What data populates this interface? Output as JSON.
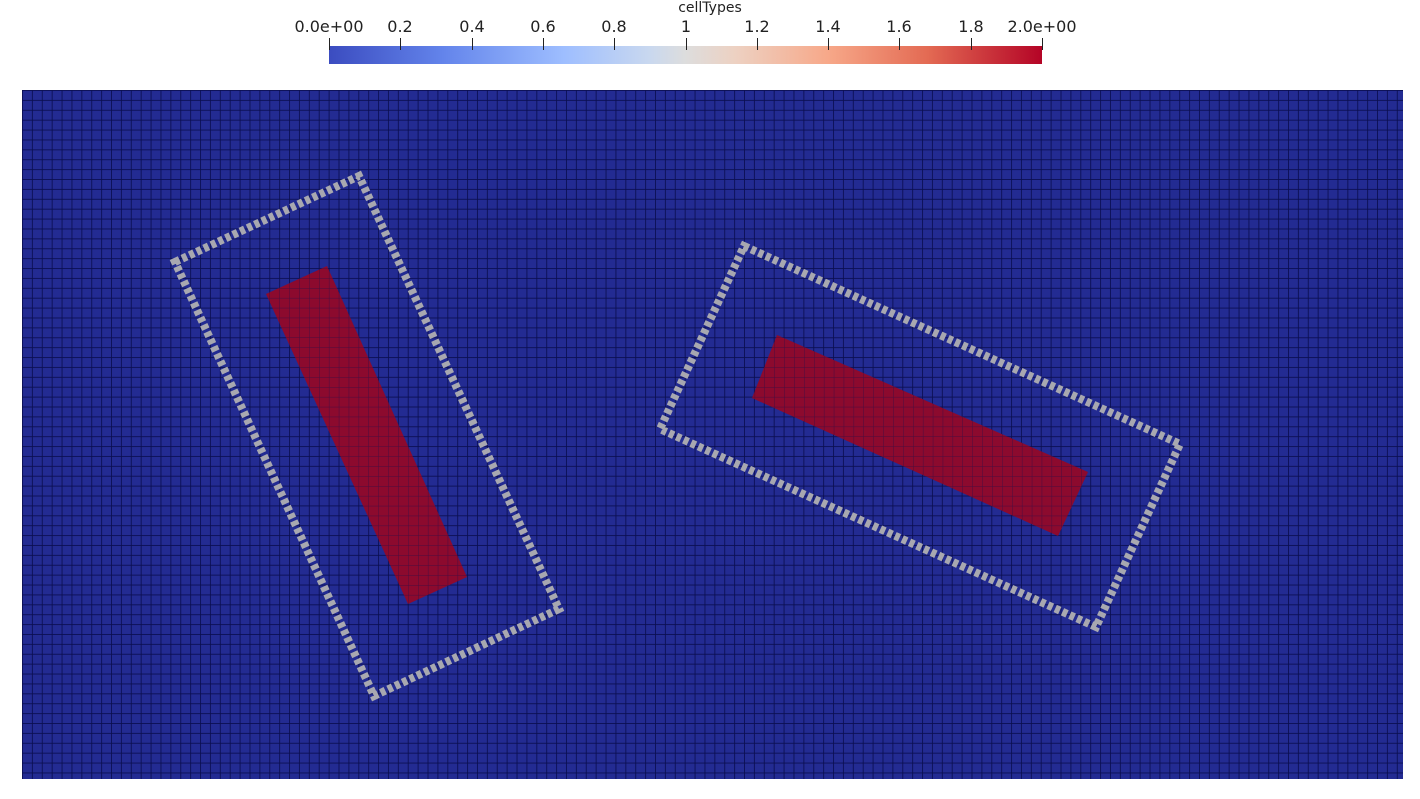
{
  "colorbar": {
    "title": "cellTypes",
    "ticks": [
      "0.0e+00",
      "0.2",
      "0.4",
      "0.6",
      "0.8",
      "1",
      "1.2",
      "1.4",
      "1.6",
      "1.8",
      "2.0e+00"
    ],
    "range": [
      0,
      2
    ],
    "colormap": "cool-to-warm",
    "colors": {
      "low": "#3b4cc0",
      "mid": "#dddddd",
      "high": "#b40426"
    }
  },
  "mesh": {
    "background_value": 0,
    "region_colors": {
      "type0": "#232b92",
      "type1_border": "#a8a8b0",
      "type2_core": "#8c0a2e"
    }
  }
}
